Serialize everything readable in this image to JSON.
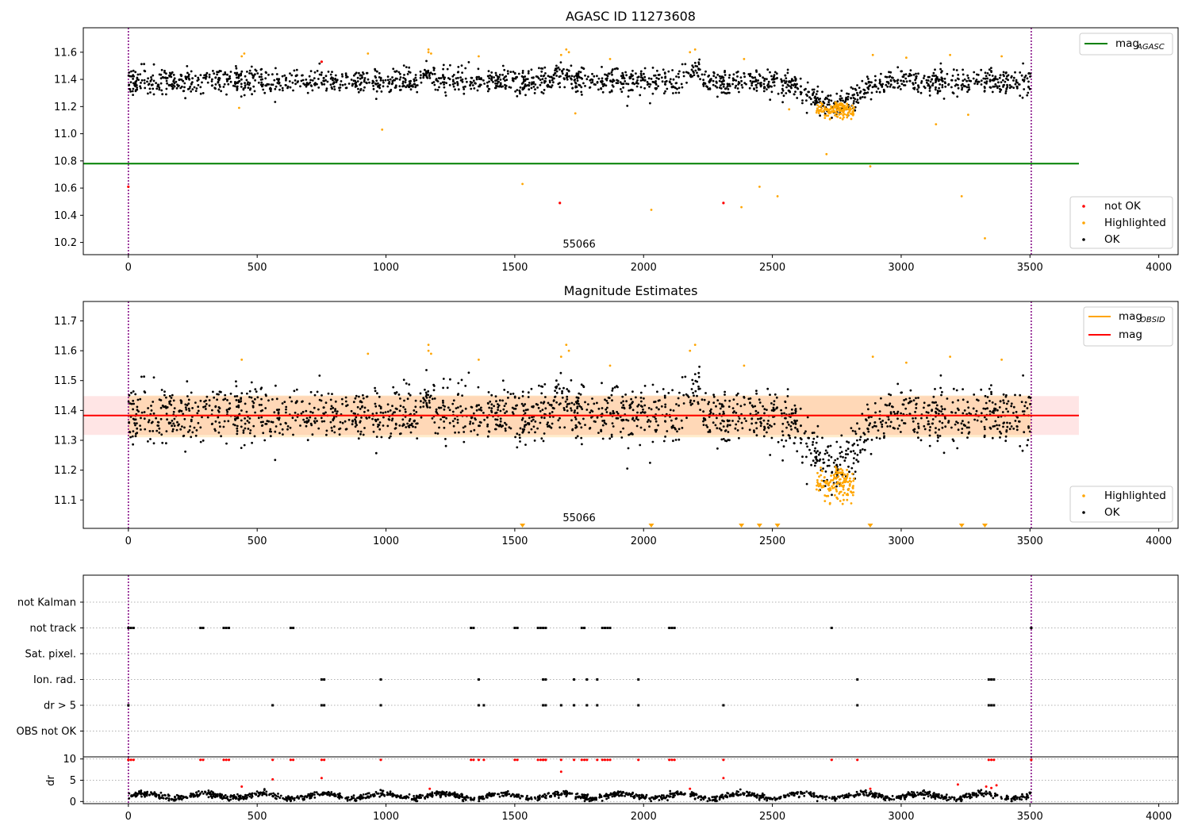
{
  "charts": {
    "agasc": {
      "title": "AGASC ID 11273608",
      "xlim": [
        -175,
        4075
      ],
      "ylim": [
        10.11,
        11.78
      ],
      "xticks": [
        0,
        500,
        1000,
        1500,
        2000,
        2500,
        3000,
        3500,
        4000
      ],
      "yticks": [
        10.2,
        10.4,
        10.6,
        10.8,
        11.0,
        11.2,
        11.4,
        11.6
      ],
      "agasc_mag": 10.78,
      "agasc_mag_xrange": [
        -175,
        3690
      ],
      "obs_boundaries": [
        0,
        3505
      ],
      "obs_label": "55066",
      "obs_label_x": 1750,
      "line_legend": {
        "main": "mag",
        "sub": "AGASC",
        "color": "#008000"
      },
      "point_legend": [
        {
          "label": "not OK",
          "color": "#ff0000"
        },
        {
          "label": "Highlighted",
          "color": "#ffa500"
        },
        {
          "label": "OK",
          "color": "#000000"
        }
      ],
      "not_ok_points": [
        [
          0,
          10.61
        ],
        [
          750,
          11.53
        ],
        [
          1675,
          10.49
        ],
        [
          2310,
          10.49
        ]
      ],
      "outlier_points": [
        [
          430,
          11.19
        ],
        [
          450,
          11.59
        ],
        [
          985,
          11.03
        ],
        [
          1530,
          10.63
        ],
        [
          1735,
          11.15
        ],
        [
          2030,
          10.44
        ],
        [
          2380,
          10.46
        ],
        [
          2450,
          10.61
        ],
        [
          2520,
          10.54
        ],
        [
          2565,
          11.18
        ],
        [
          2710,
          10.85
        ],
        [
          2880,
          10.76
        ],
        [
          3135,
          11.07
        ],
        [
          3235,
          10.54
        ],
        [
          3260,
          11.14
        ],
        [
          3325,
          10.23
        ]
      ]
    },
    "estimates": {
      "title": "Magnitude Estimates",
      "xlim": [
        -175,
        4075
      ],
      "ylim": [
        11.005,
        11.765
      ],
      "xticks": [
        0,
        500,
        1000,
        1500,
        2000,
        2500,
        3000,
        3500,
        4000
      ],
      "yticks": [
        11.1,
        11.2,
        11.3,
        11.4,
        11.5,
        11.6,
        11.7
      ],
      "mag": 11.383,
      "mag_band": [
        11.318,
        11.448
      ],
      "mag_xrange": [
        -175,
        3690
      ],
      "mag_obsid": 11.383,
      "mag_obsid_band": [
        11.31,
        11.45
      ],
      "mag_obsid_xrange": [
        0,
        3505
      ],
      "obs_boundaries": [
        0,
        3505
      ],
      "obs_label": "55066",
      "obs_label_x": 1750,
      "line_legend": [
        {
          "main": "mag",
          "sub": "OBSID",
          "color": "#ffa500"
        },
        {
          "main": "mag",
          "sub": "",
          "color": "#ff0000"
        }
      ],
      "point_legend": [
        {
          "label": "Highlighted",
          "color": "#ffa500"
        },
        {
          "label": "OK",
          "color": "#000000"
        }
      ],
      "clipped_low_markers": [
        1530,
        2030,
        2380,
        2450,
        2520,
        2880,
        3235,
        3325
      ]
    },
    "flags": {
      "xlim": [
        -175,
        4075
      ],
      "xticks": [
        0,
        500,
        1000,
        1500,
        2000,
        2500,
        3000,
        3500,
        4000
      ],
      "obs_boundaries": [
        0,
        3505
      ],
      "categories": [
        "not Kalman",
        "not track",
        "Sat. pixel.",
        "Ion. rad.",
        "dr > 5",
        "OBS not OK"
      ],
      "flag_times": {
        "not track": [
          0,
          10,
          20,
          280,
          290,
          370,
          380,
          390,
          630,
          640,
          1330,
          1340,
          1500,
          1510,
          1590,
          1600,
          1610,
          1620,
          1760,
          1770,
          1840,
          1850,
          1860,
          1870,
          2100,
          2110,
          2120,
          2730,
          3505
        ],
        "Ion. rad.": [
          750,
          760,
          980,
          1360,
          1610,
          1620,
          1730,
          1780,
          1820,
          1980,
          2830,
          3340,
          3350,
          3360
        ],
        "dr > 5": [
          0,
          560,
          750,
          760,
          980,
          1360,
          1380,
          1610,
          1620,
          1680,
          1730,
          1780,
          1820,
          1980,
          2310,
          2830,
          3340,
          3350,
          3360
        ]
      },
      "dr_ylim": [
        -0.5,
        10.5
      ],
      "dr_yticks": [
        0,
        5,
        10
      ],
      "dr_ylabel": "dr"
    }
  }
}
